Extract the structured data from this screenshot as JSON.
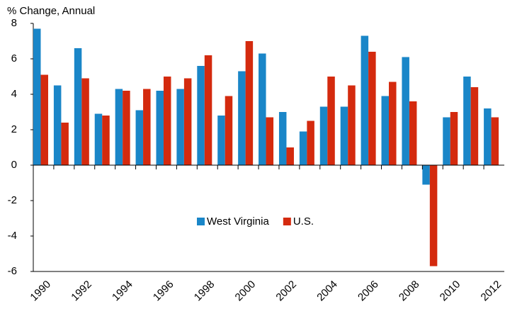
{
  "chart_data": {
    "type": "bar",
    "title": "% Change, Annual",
    "categories": [
      "1990",
      null,
      "1992",
      null,
      "1994",
      null,
      "1996",
      null,
      "1998",
      null,
      "2000",
      null,
      "2002",
      null,
      "2004",
      null,
      "2006",
      null,
      "2008",
      null,
      "2010",
      null,
      "2012"
    ],
    "series": [
      {
        "name": "West Virginia",
        "color": "#1a86c8",
        "values": [
          7.7,
          4.5,
          6.6,
          2.9,
          4.3,
          3.1,
          4.2,
          4.3,
          5.6,
          2.8,
          5.3,
          6.3,
          3.0,
          1.9,
          3.3,
          3.3,
          7.3,
          3.9,
          6.1,
          -1.1,
          2.7,
          5.0,
          3.2
        ]
      },
      {
        "name": "U.S.",
        "color": "#d42a0e",
        "values": [
          5.1,
          2.4,
          4.9,
          2.8,
          4.2,
          4.3,
          5.0,
          4.9,
          6.2,
          3.9,
          7.0,
          2.7,
          1.0,
          2.5,
          5.0,
          4.5,
          6.4,
          4.7,
          3.6,
          -5.7,
          3.0,
          4.4,
          2.7
        ]
      }
    ],
    "ylim": [
      -6,
      8
    ],
    "yticks": [
      -6,
      -4,
      -2,
      0,
      2,
      4,
      6,
      8
    ],
    "legend": "center"
  }
}
